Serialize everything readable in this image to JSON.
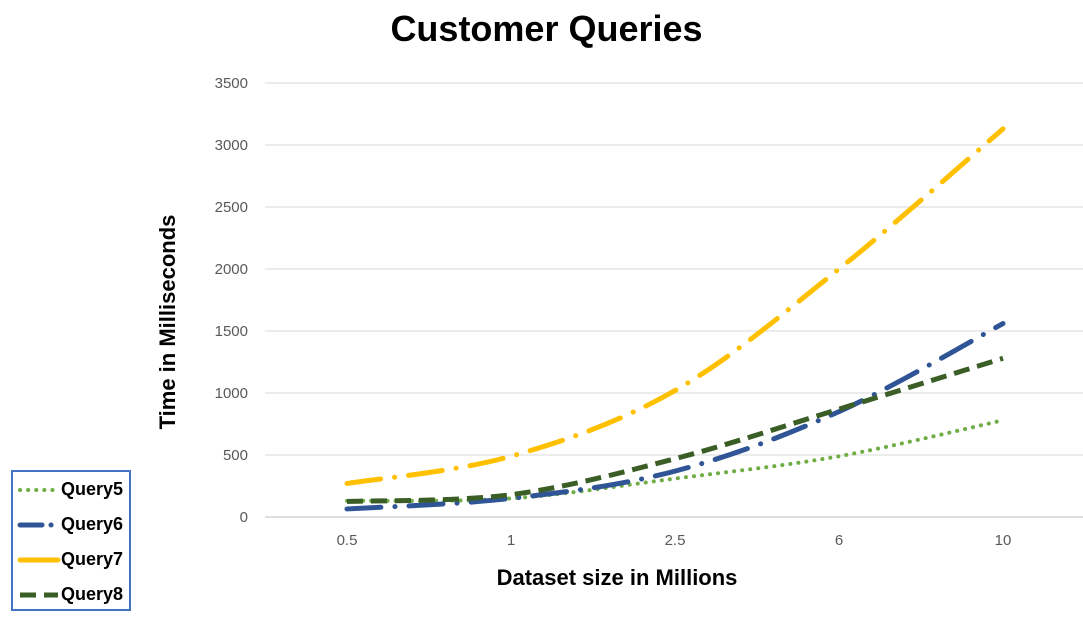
{
  "chart_data": {
    "type": "line",
    "title": "Customer Queries",
    "xlabel": "Dataset size in Millions",
    "ylabel": "Time in Milliseconds",
    "categories": [
      "0.5",
      "1",
      "2.5",
      "6",
      "10"
    ],
    "ylim": [
      0,
      3500
    ],
    "yticks": [
      0,
      500,
      1000,
      1500,
      2000,
      2500,
      3000,
      3500
    ],
    "grid": true,
    "legend_position": "bottom-left",
    "series": [
      {
        "name": "Query5",
        "values": [
          130,
          150,
          310,
          490,
          780
        ],
        "color": "#70AD47",
        "dash": "round-dot"
      },
      {
        "name": "Query6",
        "values": [
          65,
          150,
          370,
          850,
          1560
        ],
        "color": "#2F5597",
        "dash": "long-dash-dot"
      },
      {
        "name": "Query7",
        "values": [
          270,
          490,
          1020,
          2000,
          3130
        ],
        "color": "#FFC000",
        "dash": "long-dash-dot"
      },
      {
        "name": "Query8",
        "values": [
          125,
          180,
          470,
          870,
          1280
        ],
        "color": "#3A5E26",
        "dash": "dash"
      }
    ]
  }
}
